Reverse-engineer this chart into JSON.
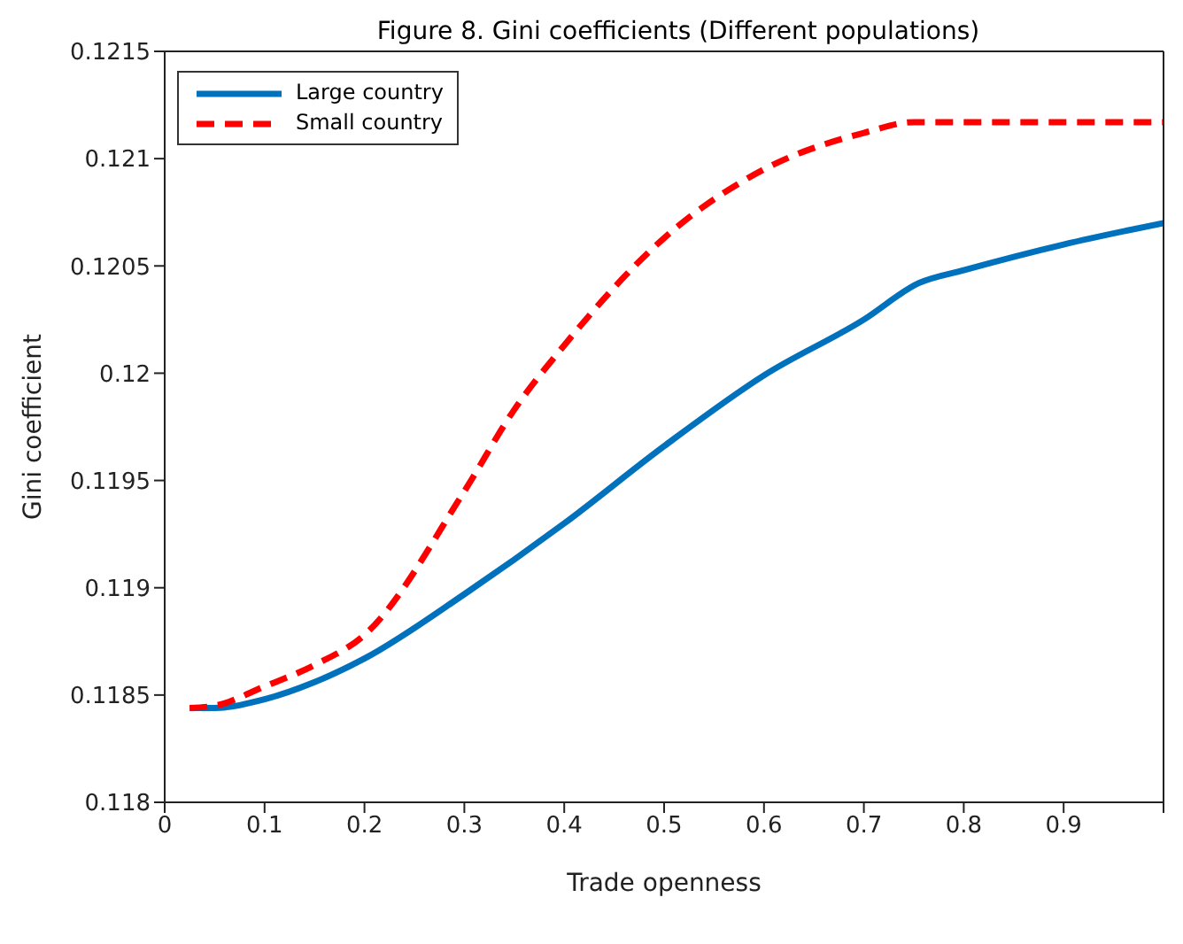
{
  "chart_data": {
    "type": "line",
    "title": "Figure 8. Gini coefficients (Different populations)",
    "xlabel": "Trade openness",
    "ylabel": "Gini coefficient",
    "xlim": [
      0,
      1
    ],
    "xticks": [
      0,
      0.1,
      0.2,
      0.3,
      0.4,
      0.5,
      0.6,
      0.7,
      0.8,
      0.9,
      {
        "value": 1,
        "label": null
      }
    ],
    "ylim": [
      0.118,
      0.1215
    ],
    "yticks": [
      0.118,
      0.1185,
      0.119,
      0.1195,
      0.12,
      0.1205,
      0.121,
      0.1215
    ],
    "grid": false,
    "legend": "top left",
    "marker": "none",
    "series": [
      {
        "name": "Large country",
        "color": "#0072bd",
        "line_style": "solid",
        "x": [
          0.025,
          0.05,
          0.1,
          0.15,
          0.2,
          0.3,
          0.4,
          0.5,
          0.6,
          0.7,
          0.755,
          0.8,
          0.9,
          1.0
        ],
        "values": [
          0.11844,
          0.11844,
          0.11848,
          0.11856,
          0.11867,
          0.11897,
          0.1193,
          0.11966,
          0.11999,
          0.12025,
          0.12042,
          0.12048,
          0.1206,
          0.1207
        ]
      },
      {
        "name": "Small country",
        "color": "#ff0000",
        "line_style": "dashed",
        "x": [
          0.025,
          0.05,
          0.1,
          0.15,
          0.2,
          0.3,
          0.35,
          0.4,
          0.5,
          0.6,
          0.7,
          0.75,
          0.8,
          0.9,
          1.0
        ],
        "values": [
          0.11844,
          0.11845,
          0.11854,
          0.11864,
          0.11878,
          0.11945,
          0.11983,
          0.12013,
          0.12063,
          0.12095,
          0.12112,
          0.12117,
          0.12117,
          0.12117,
          0.12117
        ]
      }
    ]
  }
}
